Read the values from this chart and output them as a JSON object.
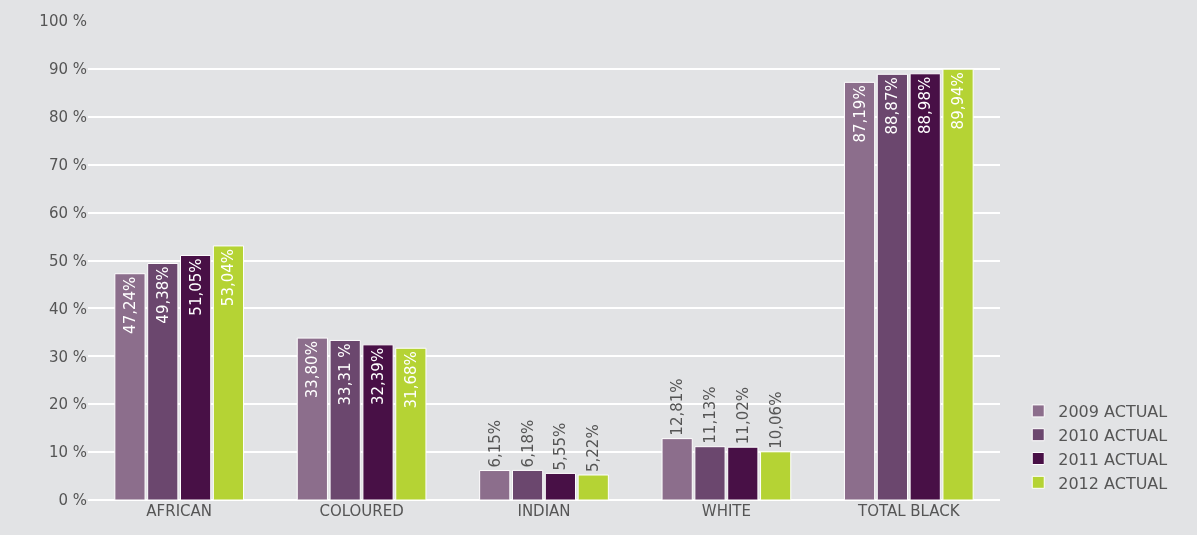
{
  "chart_data": {
    "type": "bar",
    "categories": [
      "AFRICAN",
      "COLOURED",
      "INDIAN",
      "WHITE",
      "TOTAL BLACK"
    ],
    "series": [
      {
        "name": "2009 ACTUAL",
        "color": "#8c6e8c",
        "values": [
          47.24,
          33.8,
          6.15,
          12.81,
          87.19
        ],
        "value_labels": [
          "47,24%",
          "33,80%",
          "6,15%",
          "12,81%",
          "87,19%"
        ]
      },
      {
        "name": "2010 ACTUAL",
        "color": "#6b476e",
        "values": [
          49.38,
          33.31,
          6.18,
          11.13,
          88.87
        ],
        "value_labels": [
          "49,38%",
          "33,31 %",
          "6,18%",
          "11,13%",
          "88,87%"
        ]
      },
      {
        "name": "2011 ACTUAL",
        "color": "#481046",
        "values": [
          51.05,
          32.39,
          5.55,
          11.02,
          88.98
        ],
        "value_labels": [
          "51,05%",
          "32,39%",
          "5,55%",
          "11,02%",
          "88,98%"
        ]
      },
      {
        "name": "2012 ACTUAL",
        "color": "#b5d334",
        "values": [
          53.04,
          31.68,
          5.22,
          10.06,
          89.94
        ],
        "value_labels": [
          "53,04%",
          "31,68%",
          "5,22%",
          "10,06%",
          "89,94%"
        ]
      }
    ],
    "ylim": [
      0,
      100
    ],
    "yticks": [
      {
        "value": 0,
        "label": "0 %"
      },
      {
        "value": 10,
        "label": "10 %"
      },
      {
        "value": 20,
        "label": "20 %"
      },
      {
        "value": 30,
        "label": "30 %"
      },
      {
        "value": 40,
        "label": "40 %"
      },
      {
        "value": 50,
        "label": "50 %"
      },
      {
        "value": 60,
        "label": "60 %"
      },
      {
        "value": 70,
        "label": "70 %"
      },
      {
        "value": 80,
        "label": "80 %"
      },
      {
        "value": 90,
        "label": "90 %"
      },
      {
        "value": 100,
        "label": "100 %"
      }
    ],
    "grid": "y",
    "legend": "bottom right"
  }
}
